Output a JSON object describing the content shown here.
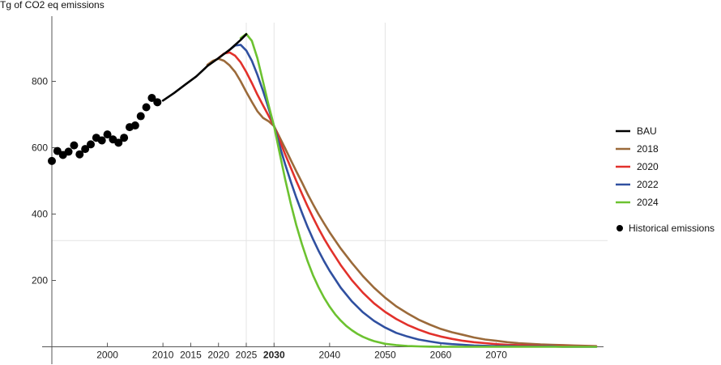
{
  "chart_data": {
    "type": "line",
    "ylabel": "Tg of CO2 eq emissions",
    "xlim": [
      1990,
      2088
    ],
    "ylim": [
      0,
      950
    ],
    "y_ticks": [
      "200",
      "400",
      "600",
      "800"
    ],
    "x_ticks": [
      "2000",
      "2010",
      "2015",
      "2020",
      "2025",
      "2030",
      "2040",
      "2050",
      "2060",
      "2070"
    ],
    "x_tick_emphasis": "2030",
    "grid": "vertical lines at 2025, 2030, 2050; horizontal line at 320",
    "legend_position": "right",
    "colors": {
      "BAU": "#000000",
      "2018": "#9b6a3a",
      "2020": "#e2312b",
      "2022": "#3050a0",
      "2024": "#6cc230",
      "Historical emissions": "#000000"
    },
    "series": [
      {
        "name": "Historical emissions",
        "kind": "scatter",
        "x": [
          1990,
          1991,
          1992,
          1993,
          1994,
          1995,
          1996,
          1997,
          1998,
          1999,
          2000,
          2001,
          2002,
          2003,
          2004,
          2005,
          2006,
          2007,
          2008,
          2009
        ],
        "y": [
          560,
          590,
          578,
          588,
          607,
          580,
          596,
          610,
          630,
          622,
          640,
          625,
          615,
          630,
          662,
          667,
          695,
          722,
          750,
          737
        ]
      },
      {
        "name": "BAU",
        "kind": "line",
        "x": [
          2010,
          2012,
          2014,
          2016,
          2018,
          2020,
          2022,
          2024,
          2025
        ],
        "y": [
          742,
          765,
          790,
          815,
          846,
          870,
          895,
          925,
          942
        ]
      },
      {
        "name": "2018",
        "kind": "line",
        "x": [
          2018,
          2019,
          2020,
          2021,
          2022,
          2023,
          2024,
          2025,
          2026,
          2027,
          2028,
          2029,
          2030,
          2031,
          2032,
          2033,
          2034,
          2035,
          2036,
          2037,
          2038,
          2039,
          2040,
          2042,
          2044,
          2046,
          2048,
          2050,
          2052,
          2054,
          2056,
          2058,
          2060,
          2062,
          2064,
          2066,
          2068,
          2070,
          2072,
          2074,
          2076,
          2078,
          2080,
          2082,
          2084,
          2086,
          2088
        ],
        "y": [
          850,
          862,
          868,
          862,
          848,
          828,
          800,
          768,
          738,
          710,
          690,
          680,
          665,
          632,
          598,
          563,
          529,
          496,
          462,
          430,
          400,
          372,
          345,
          296,
          253,
          213,
          178,
          148,
          122,
          101,
          82,
          67,
          54,
          44,
          36,
          28,
          22,
          18,
          14,
          11,
          9,
          7,
          6,
          5,
          4,
          3,
          2
        ]
      },
      {
        "name": "2020",
        "kind": "line",
        "x": [
          2020,
          2021,
          2022,
          2023,
          2024,
          2025,
          2026,
          2027,
          2028,
          2029,
          2030,
          2031,
          2032,
          2033,
          2034,
          2035,
          2036,
          2037,
          2038,
          2039,
          2040,
          2042,
          2044,
          2046,
          2048,
          2050,
          2052,
          2054,
          2056,
          2058,
          2060,
          2062,
          2064,
          2066,
          2068,
          2070,
          2072,
          2074,
          2076,
          2078,
          2080,
          2082,
          2084,
          2086,
          2088
        ],
        "y": [
          870,
          884,
          887,
          877,
          857,
          828,
          795,
          760,
          728,
          697,
          665,
          622,
          580,
          540,
          500,
          462,
          425,
          390,
          357,
          326,
          298,
          246,
          201,
          163,
          131,
          105,
          84,
          66,
          52,
          40,
          31,
          24,
          18,
          14,
          11,
          8,
          6,
          5,
          4,
          3,
          2,
          2,
          1,
          1,
          1
        ]
      },
      {
        "name": "2022",
        "kind": "line",
        "x": [
          2022,
          2023,
          2024,
          2025,
          2026,
          2027,
          2028,
          2029,
          2030,
          2031,
          2032,
          2033,
          2034,
          2035,
          2036,
          2037,
          2038,
          2039,
          2040,
          2042,
          2044,
          2046,
          2048,
          2050,
          2052,
          2054,
          2056,
          2058,
          2060,
          2062,
          2064,
          2066,
          2068,
          2070,
          2072,
          2074,
          2076,
          2078,
          2080,
          2082,
          2084,
          2086,
          2088
        ],
        "y": [
          895,
          908,
          910,
          893,
          862,
          820,
          772,
          720,
          665,
          606,
          550,
          498,
          450,
          405,
          363,
          325,
          290,
          258,
          229,
          178,
          137,
          104,
          78,
          58,
          42,
          31,
          22,
          16,
          11,
          8,
          6,
          4,
          3,
          2,
          2,
          1,
          1,
          1,
          1,
          0,
          0,
          0,
          0
        ]
      },
      {
        "name": "2024",
        "kind": "line",
        "x": [
          2024,
          2025,
          2026,
          2027,
          2028,
          2029,
          2030,
          2031,
          2032,
          2033,
          2034,
          2035,
          2036,
          2037,
          2038,
          2039,
          2040,
          2041,
          2042,
          2043,
          2044,
          2045,
          2046,
          2047,
          2048,
          2050,
          2052,
          2054,
          2056,
          2058,
          2060,
          2064,
          2068,
          2072,
          2076,
          2080,
          2084,
          2088
        ],
        "y": [
          930,
          943,
          922,
          870,
          800,
          730,
          665,
          585,
          505,
          432,
          367,
          310,
          260,
          216,
          180,
          148,
          121,
          98,
          79,
          63,
          50,
          39,
          30,
          23,
          17,
          9,
          5,
          2.5,
          1.2,
          0.6,
          0.3,
          0.1,
          0,
          0,
          0,
          0,
          0,
          0
        ]
      }
    ],
    "legend": [
      "BAU",
      "2018",
      "2020",
      "2022",
      "2024",
      "Historical emissions"
    ]
  }
}
